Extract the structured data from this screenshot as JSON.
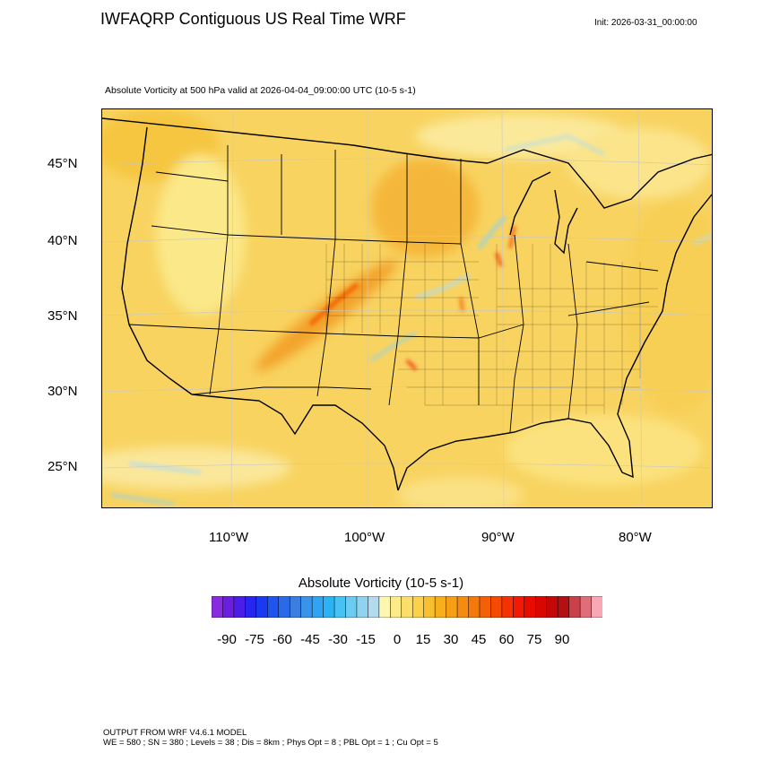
{
  "header": {
    "title": "IWFAQRP Contiguous US Real Time WRF",
    "init": "Init: 2026-03-31_00:00:00",
    "field_title": "Absolute Vorticity at 500 hPa valid at 2026-04-04_09:00:00 UTC   (10-5 s-1)"
  },
  "map": {
    "lat_labels": [
      "45°N",
      "40°N",
      "35°N",
      "30°N",
      "25°N"
    ],
    "lon_labels": [
      "110°W",
      "100°W",
      "90°W",
      "80°W"
    ],
    "background_color": "#f8d360",
    "land_color": "#fbe37a",
    "line_color": "#000000"
  },
  "colorbar": {
    "title": "Absolute Vorticity  (10-5 s-1)",
    "labels": [
      "-90",
      "-75",
      "-60",
      "-45",
      "-30",
      "-15",
      "0",
      "15",
      "30",
      "45",
      "60",
      "75",
      "90"
    ],
    "colors": [
      "#8a2be2",
      "#6a1ee0",
      "#4a1ee6",
      "#2626ee",
      "#1a3af2",
      "#1e55f0",
      "#2a6ae8",
      "#3c7ee0",
      "#3a92ea",
      "#2ea4f2",
      "#2ab4f5",
      "#48c2f3",
      "#6ccbf0",
      "#8fd3ee",
      "#b2dcee",
      "#fff6b0",
      "#fdeb8a",
      "#fcdf6b",
      "#fbd14c",
      "#f8c02e",
      "#f7af1e",
      "#f69e16",
      "#f58c10",
      "#f4780a",
      "#f46006",
      "#f44a04",
      "#f43202",
      "#f21a00",
      "#e80c00",
      "#d80800",
      "#c40808",
      "#b41014",
      "#c84048",
      "#e06e78",
      "#f8a8b4"
    ]
  },
  "footer": {
    "model": "OUTPUT FROM WRF V4.6.1 MODEL",
    "config": "WE = 580 ; SN = 380 ; Levels = 38 ; Dis = 8km ; Phys Opt = 8 ; PBL Opt = 1 ; Cu Opt = 5"
  }
}
